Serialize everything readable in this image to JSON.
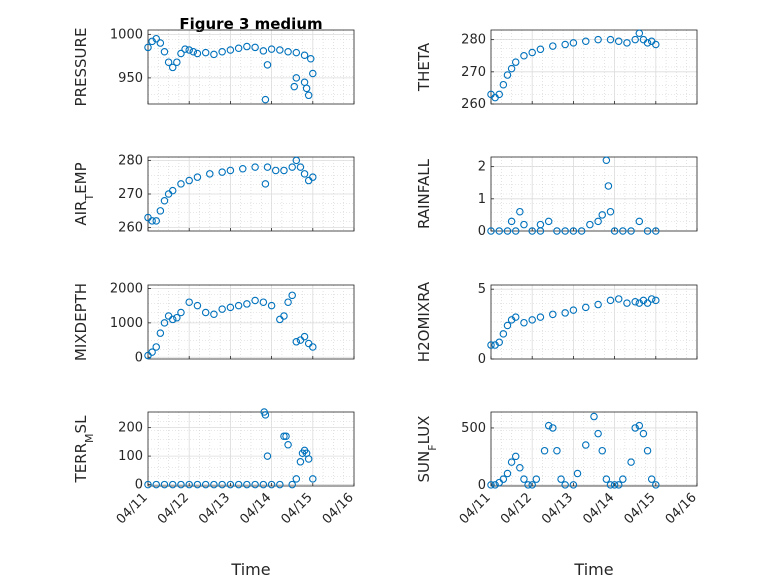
{
  "title": "Figure 3 medium",
  "xlabel": "Time",
  "x_tick_labels": [
    "04/11",
    "04/12",
    "04/13",
    "04/14",
    "04/15",
    "04/16"
  ],
  "marker_color": "#0072BD",
  "chart_data": [
    {
      "type": "scatter",
      "ylabel": "PRESSURE",
      "ylabel_sub": "",
      "ylim": [
        920,
        1005
      ],
      "yticks": [
        950,
        1000
      ],
      "xlim": [
        0,
        5
      ],
      "x": [
        0.0,
        0.1,
        0.2,
        0.3,
        0.4,
        0.5,
        0.6,
        0.7,
        0.8,
        0.9,
        1.0,
        1.1,
        1.2,
        1.4,
        1.6,
        1.8,
        2.0,
        2.2,
        2.4,
        2.6,
        2.8,
        3.0,
        3.2,
        3.4,
        3.6,
        3.8,
        3.95,
        2.85,
        2.9,
        3.55,
        3.6,
        3.8,
        3.85,
        3.9,
        4.0
      ],
      "y": [
        985,
        992,
        995,
        990,
        980,
        968,
        962,
        968,
        978,
        983,
        982,
        980,
        978,
        979,
        977,
        980,
        982,
        984,
        986,
        985,
        981,
        983,
        982,
        980,
        979,
        976,
        972,
        925,
        965,
        940,
        950,
        945,
        938,
        930,
        955
      ]
    },
    {
      "type": "scatter",
      "ylabel": "THETA",
      "ylabel_sub": "",
      "ylim": [
        260,
        283
      ],
      "yticks": [
        260,
        270,
        280
      ],
      "xlim": [
        0,
        5
      ],
      "x": [
        0.0,
        0.1,
        0.2,
        0.3,
        0.4,
        0.5,
        0.6,
        0.8,
        1.0,
        1.2,
        1.5,
        1.8,
        2.0,
        2.3,
        2.6,
        2.9,
        3.1,
        3.3,
        3.5,
        3.6,
        3.7,
        3.8,
        3.9,
        4.0
      ],
      "y": [
        263,
        262,
        263,
        266,
        269,
        271,
        273,
        275,
        276,
        277,
        278,
        278.5,
        279,
        279.5,
        280,
        280,
        279.5,
        279,
        280,
        282,
        280,
        279,
        279.5,
        278.5
      ]
    },
    {
      "type": "scatter",
      "ylabel": "AIR",
      "ylabel_sub": "T",
      "ylabel_suffix": "EMP",
      "ylim": [
        259,
        281
      ],
      "yticks": [
        260,
        270,
        280
      ],
      "xlim": [
        0,
        5
      ],
      "x": [
        0.0,
        0.1,
        0.2,
        0.3,
        0.4,
        0.5,
        0.6,
        0.8,
        1.0,
        1.2,
        1.5,
        1.8,
        2.0,
        2.3,
        2.6,
        2.9,
        3.1,
        3.3,
        3.5,
        3.6,
        3.7,
        3.8,
        3.9,
        4.0,
        2.85
      ],
      "y": [
        263,
        262,
        262,
        265,
        268,
        270,
        271,
        273,
        274,
        275,
        276,
        276.5,
        277,
        277.5,
        278,
        278,
        277,
        277,
        278,
        280,
        278,
        276,
        274,
        275,
        273
      ]
    },
    {
      "type": "scatter",
      "ylabel": "RAINFALL",
      "ylabel_sub": "",
      "ylim": [
        0,
        2.3
      ],
      "yticks": [
        0,
        1,
        2
      ],
      "xlim": [
        0,
        5
      ],
      "x": [
        0.0,
        0.2,
        0.4,
        0.6,
        0.8,
        1.0,
        1.2,
        1.4,
        1.6,
        1.8,
        2.0,
        2.2,
        2.4,
        2.6,
        2.7,
        2.8,
        2.85,
        2.9,
        3.0,
        3.2,
        3.4,
        3.6,
        3.8,
        4.0,
        0.7,
        0.5,
        1.2
      ],
      "y": [
        0,
        0,
        0,
        0,
        0.2,
        0,
        0,
        0.3,
        0,
        0,
        0,
        0,
        0.2,
        0.3,
        0.5,
        2.2,
        1.4,
        0.6,
        0,
        0,
        0,
        0.3,
        0,
        0,
        0.6,
        0.3,
        0.2
      ]
    },
    {
      "type": "scatter",
      "ylabel": "MIXDEPTH",
      "ylabel_sub": "",
      "ylim": [
        -50,
        2100
      ],
      "yticks": [
        0,
        1000,
        2000
      ],
      "xlim": [
        0,
        5
      ],
      "x": [
        0.0,
        0.1,
        0.2,
        0.3,
        0.4,
        0.5,
        0.6,
        0.7,
        0.8,
        1.0,
        1.2,
        1.4,
        1.6,
        1.8,
        2.0,
        2.2,
        2.4,
        2.6,
        2.8,
        3.0,
        3.2,
        3.3,
        3.4,
        3.5,
        3.6,
        3.7,
        3.8,
        3.9,
        4.0
      ],
      "y": [
        50,
        150,
        300,
        700,
        1000,
        1200,
        1100,
        1150,
        1300,
        1600,
        1500,
        1300,
        1250,
        1400,
        1450,
        1500,
        1550,
        1650,
        1600,
        1500,
        1100,
        1200,
        1600,
        1800,
        450,
        500,
        600,
        400,
        300
      ]
    },
    {
      "type": "scatter",
      "ylabel": "H2OMIXRA",
      "ylabel_sub": "",
      "ylim": [
        0,
        5.3
      ],
      "yticks": [
        0,
        5
      ],
      "xlim": [
        0,
        5
      ],
      "x": [
        0.0,
        0.1,
        0.2,
        0.3,
        0.4,
        0.5,
        0.6,
        0.8,
        1.0,
        1.2,
        1.5,
        1.8,
        2.0,
        2.3,
        2.6,
        2.9,
        3.1,
        3.3,
        3.5,
        3.6,
        3.7,
        3.8,
        3.9,
        4.0
      ],
      "y": [
        1.0,
        1.0,
        1.2,
        1.8,
        2.4,
        2.8,
        3.0,
        2.6,
        2.8,
        3.0,
        3.2,
        3.3,
        3.5,
        3.7,
        3.9,
        4.2,
        4.3,
        4.0,
        4.1,
        4.0,
        4.2,
        4.0,
        4.3,
        4.2
      ]
    },
    {
      "type": "scatter",
      "ylabel": "TERR",
      "ylabel_sub": "M",
      "ylabel_suffix": "SL",
      "ylim": [
        -5,
        255
      ],
      "yticks": [
        0,
        100,
        200
      ],
      "xlim": [
        0,
        5
      ],
      "x": [
        0.0,
        0.2,
        0.4,
        0.6,
        0.8,
        1.0,
        1.2,
        1.4,
        1.6,
        1.8,
        2.0,
        2.2,
        2.4,
        2.6,
        2.8,
        2.82,
        2.85,
        2.9,
        3.0,
        3.2,
        3.3,
        3.35,
        3.4,
        3.6,
        3.7,
        3.75,
        3.8,
        3.85,
        3.9,
        4.0,
        3.5
      ],
      "y": [
        0,
        0,
        0,
        0,
        0,
        0,
        0,
        0,
        0,
        0,
        0,
        0,
        0,
        0,
        0,
        255,
        245,
        100,
        0,
        0,
        170,
        170,
        140,
        20,
        80,
        110,
        120,
        110,
        90,
        20,
        0
      ]
    },
    {
      "type": "scatter",
      "ylabel": "SUN",
      "ylabel_sub": "F",
      "ylabel_suffix": "LUX",
      "ylim": [
        -10,
        640
      ],
      "yticks": [
        0,
        500
      ],
      "xlim": [
        0,
        5
      ],
      "x": [
        0.0,
        0.1,
        0.2,
        0.3,
        0.4,
        0.5,
        0.6,
        0.7,
        0.8,
        0.9,
        1.0,
        1.1,
        1.3,
        1.4,
        1.5,
        1.6,
        1.7,
        1.8,
        2.0,
        2.1,
        2.3,
        2.5,
        2.6,
        2.7,
        2.8,
        2.9,
        3.0,
        3.1,
        3.2,
        3.4,
        3.5,
        3.6,
        3.7,
        3.8,
        3.9,
        4.0
      ],
      "y": [
        0,
        0,
        20,
        50,
        100,
        200,
        250,
        150,
        50,
        0,
        0,
        50,
        300,
        520,
        500,
        300,
        50,
        0,
        0,
        100,
        350,
        600,
        450,
        300,
        50,
        0,
        0,
        0,
        50,
        200,
        500,
        520,
        450,
        300,
        50,
        0
      ]
    }
  ]
}
